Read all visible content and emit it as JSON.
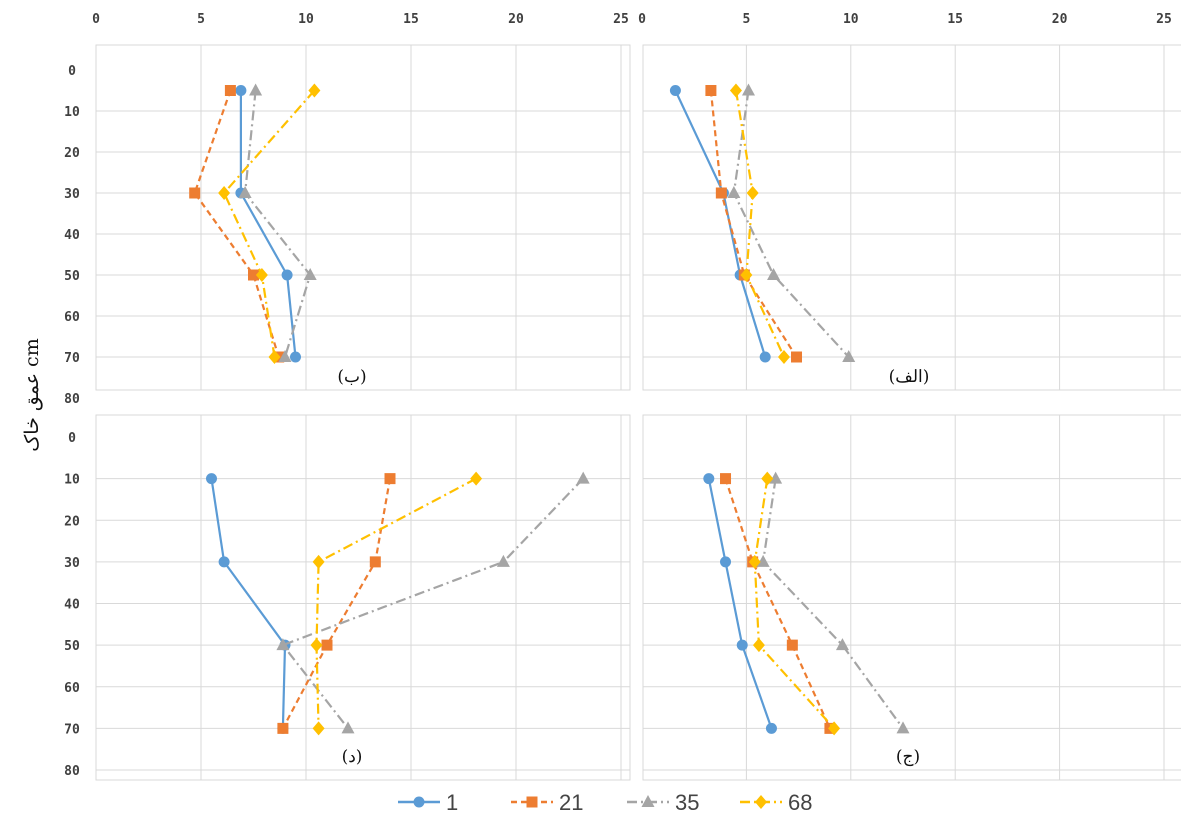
{
  "chart_data": [
    {
      "type": "line",
      "panel_label": "(ب)",
      "x_ticks": [
        "0",
        "5",
        "10",
        "15",
        "20",
        "25"
      ],
      "y_ticks": [
        "0",
        "10",
        "20",
        "30",
        "40",
        "50",
        "60",
        "70",
        "80"
      ],
      "xlim": [
        0,
        25
      ],
      "ylim": [
        0,
        80
      ],
      "grid": true,
      "series": [
        {
          "name": "1",
          "depths": [
            5,
            30,
            50,
            70
          ],
          "values": [
            6.9,
            6.9,
            9.1,
            9.5
          ]
        },
        {
          "name": "21",
          "depths": [
            5,
            30,
            50,
            70
          ],
          "values": [
            6.4,
            4.7,
            7.5,
            8.7
          ]
        },
        {
          "name": "35",
          "depths": [
            5,
            30,
            50,
            70
          ],
          "values": [
            7.6,
            7.1,
            10.2,
            9.0
          ]
        },
        {
          "name": "68",
          "depths": [
            5,
            30,
            50,
            70
          ],
          "values": [
            10.4,
            6.1,
            7.9,
            8.5
          ]
        }
      ]
    },
    {
      "type": "line",
      "panel_label": "(الف)",
      "x_ticks": [
        "0",
        "5",
        "10",
        "15",
        "20",
        "25"
      ],
      "y_ticks": [
        "0",
        "10",
        "20",
        "30",
        "40",
        "50",
        "60",
        "70",
        "80"
      ],
      "xlim": [
        0,
        25
      ],
      "ylim": [
        0,
        80
      ],
      "grid": true,
      "series": [
        {
          "name": "1",
          "depths": [
            5,
            30,
            50,
            70
          ],
          "values": [
            1.6,
            3.9,
            4.7,
            5.9
          ]
        },
        {
          "name": "21",
          "depths": [
            5,
            30,
            50,
            70
          ],
          "values": [
            3.3,
            3.8,
            4.9,
            7.4
          ]
        },
        {
          "name": "35",
          "depths": [
            5,
            30,
            50,
            70
          ],
          "values": [
            5.1,
            4.4,
            6.3,
            9.9
          ]
        },
        {
          "name": "68",
          "depths": [
            5,
            30,
            50,
            70
          ],
          "values": [
            4.5,
            5.3,
            5.0,
            6.8
          ]
        }
      ]
    },
    {
      "type": "line",
      "panel_label": "(د)",
      "x_ticks": [
        "0",
        "5",
        "10",
        "15",
        "20",
        "25"
      ],
      "y_ticks": [
        "0",
        "10",
        "20",
        "30",
        "40",
        "50",
        "60",
        "70",
        "80"
      ],
      "xlim": [
        0,
        25
      ],
      "ylim": [
        0,
        80
      ],
      "grid": true,
      "series": [
        {
          "name": "1",
          "depths": [
            10,
            30,
            50,
            70
          ],
          "values": [
            5.5,
            6.1,
            9.0,
            8.9
          ]
        },
        {
          "name": "21",
          "depths": [
            10,
            30,
            50,
            70
          ],
          "values": [
            14.0,
            13.3,
            11.0,
            8.9
          ]
        },
        {
          "name": "35",
          "depths": [
            10,
            30,
            50,
            70
          ],
          "values": [
            23.2,
            19.4,
            8.9,
            12.0
          ]
        },
        {
          "name": "68",
          "depths": [
            10,
            30,
            50,
            70
          ],
          "values": [
            18.1,
            10.6,
            10.5,
            10.6
          ]
        }
      ]
    },
    {
      "type": "line",
      "panel_label": "(ج)",
      "x_ticks": [
        "0",
        "5",
        "10",
        "15",
        "20",
        "25"
      ],
      "y_ticks": [
        "0",
        "10",
        "20",
        "30",
        "40",
        "50",
        "60",
        "70",
        "80"
      ],
      "xlim": [
        0,
        25
      ],
      "ylim": [
        0,
        80
      ],
      "grid": true,
      "series": [
        {
          "name": "1",
          "depths": [
            10,
            30,
            50,
            70
          ],
          "values": [
            3.2,
            4.0,
            4.8,
            6.2
          ]
        },
        {
          "name": "21",
          "depths": [
            10,
            30,
            50,
            70
          ],
          "values": [
            4.0,
            5.3,
            7.2,
            9.0
          ]
        },
        {
          "name": "35",
          "depths": [
            10,
            30,
            50,
            70
          ],
          "values": [
            6.4,
            5.8,
            9.6,
            12.5
          ]
        },
        {
          "name": "68",
          "depths": [
            10,
            30,
            50,
            70
          ],
          "values": [
            6.0,
            5.4,
            5.6,
            9.2
          ]
        }
      ]
    }
  ],
  "y_axis_label": "عمق خاک cm",
  "legend": {
    "placement": "bottom",
    "items": [
      {
        "name": "1",
        "label": "1",
        "color": "#5b9bd5",
        "marker": "circle",
        "dash": "solid"
      },
      {
        "name": "21",
        "label": "21",
        "color": "#ed7d31",
        "marker": "square",
        "dash": "dashed"
      },
      {
        "name": "35",
        "label": "35",
        "color": "#a5a5a5",
        "marker": "triangle",
        "dash": "dashdot"
      },
      {
        "name": "68",
        "label": "68",
        "color": "#ffc000",
        "marker": "diamond",
        "dash": "dashdot"
      }
    ]
  }
}
